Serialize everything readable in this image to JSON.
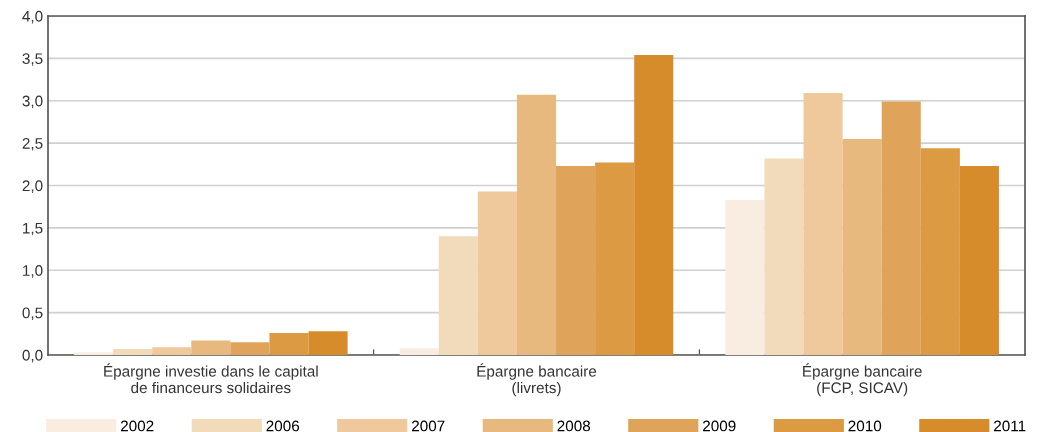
{
  "chart_data": {
    "type": "bar",
    "categories": [
      "Épargne investie dans le capital\nde financeurs solidaires",
      "Épargne bancaire\n(livrets)",
      "Épargne bancaire\n(FCP, SICAV)"
    ],
    "series": [
      {
        "name": "2002",
        "color": "#f8ede0",
        "values": [
          0.03,
          0.08,
          1.83
        ]
      },
      {
        "name": "2006",
        "color": "#f2dbbb",
        "values": [
          0.07,
          1.4,
          2.32
        ]
      },
      {
        "name": "2007",
        "color": "#efc99b",
        "values": [
          0.09,
          1.93,
          3.09
        ]
      },
      {
        "name": "2008",
        "color": "#e7b97e",
        "values": [
          0.17,
          3.07,
          2.55
        ]
      },
      {
        "name": "2009",
        "color": "#dfa45a",
        "values": [
          0.15,
          2.23,
          2.99
        ]
      },
      {
        "name": "2010",
        "color": "#dc9a43",
        "values": [
          0.26,
          2.27,
          2.44
        ]
      },
      {
        "name": "2011",
        "color": "#d68c2a",
        "values": [
          0.28,
          3.54,
          2.23
        ]
      }
    ],
    "ylim": [
      0,
      4
    ],
    "yticks": [
      {
        "value": 0,
        "label": "0,0"
      },
      {
        "value": 0.5,
        "label": "0,5"
      },
      {
        "value": 1,
        "label": "1,0"
      },
      {
        "value": 1.5,
        "label": "1,5"
      },
      {
        "value": 2,
        "label": "2,0"
      },
      {
        "value": 2.5,
        "label": "2,5"
      },
      {
        "value": 3,
        "label": "3,0"
      },
      {
        "value": 3.5,
        "label": "3,5"
      },
      {
        "value": 4,
        "label": "4,0"
      }
    ],
    "grid": "y",
    "legend": "bottom"
  }
}
